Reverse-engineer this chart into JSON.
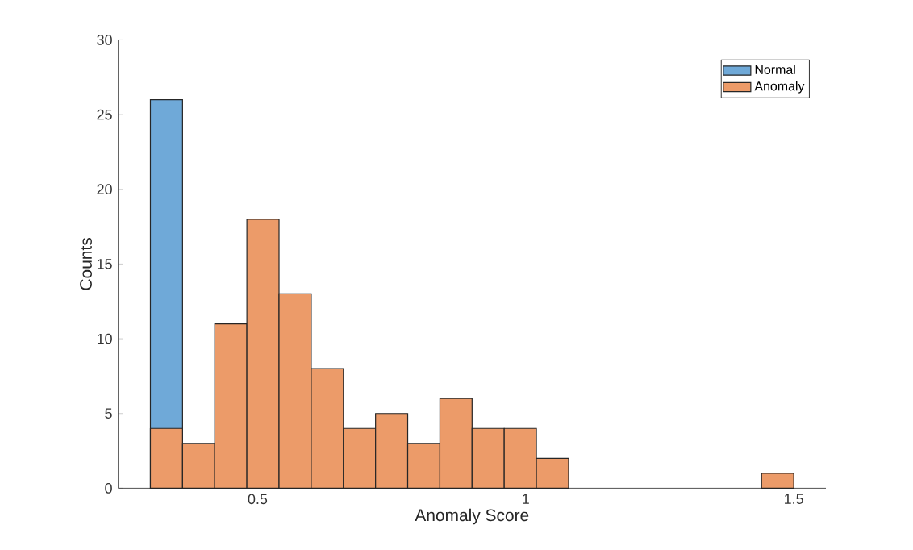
{
  "chart_data": {
    "type": "histogram",
    "xlabel": "Anomaly Score",
    "ylabel": "Counts",
    "xlim": [
      0.24,
      1.56
    ],
    "ylim": [
      0,
      30
    ],
    "xticks": [
      0.5,
      1,
      1.5
    ],
    "yticks": [
      0,
      5,
      10,
      15,
      20,
      25,
      30
    ],
    "legend": "top right",
    "grid": false,
    "bins": [
      0.3,
      0.36,
      0.42,
      0.48,
      0.54,
      0.6,
      0.66,
      0.72,
      0.78,
      0.84,
      0.9,
      0.96,
      1.02,
      1.08,
      1.14,
      1.2,
      1.26,
      1.32,
      1.38,
      1.44,
      1.5
    ],
    "series": [
      {
        "name": "Normal",
        "color": "#6fa9d8",
        "values": [
          26,
          0,
          0,
          0,
          0,
          0,
          0,
          0,
          0,
          0,
          0,
          0,
          0,
          0,
          0,
          0,
          0,
          0,
          0,
          0
        ]
      },
      {
        "name": "Anomaly",
        "color": "#ec9b69",
        "values": [
          4,
          3,
          11,
          18,
          13,
          8,
          4,
          5,
          3,
          6,
          4,
          4,
          2,
          0,
          0,
          0,
          0,
          0,
          0,
          1
        ]
      }
    ]
  }
}
